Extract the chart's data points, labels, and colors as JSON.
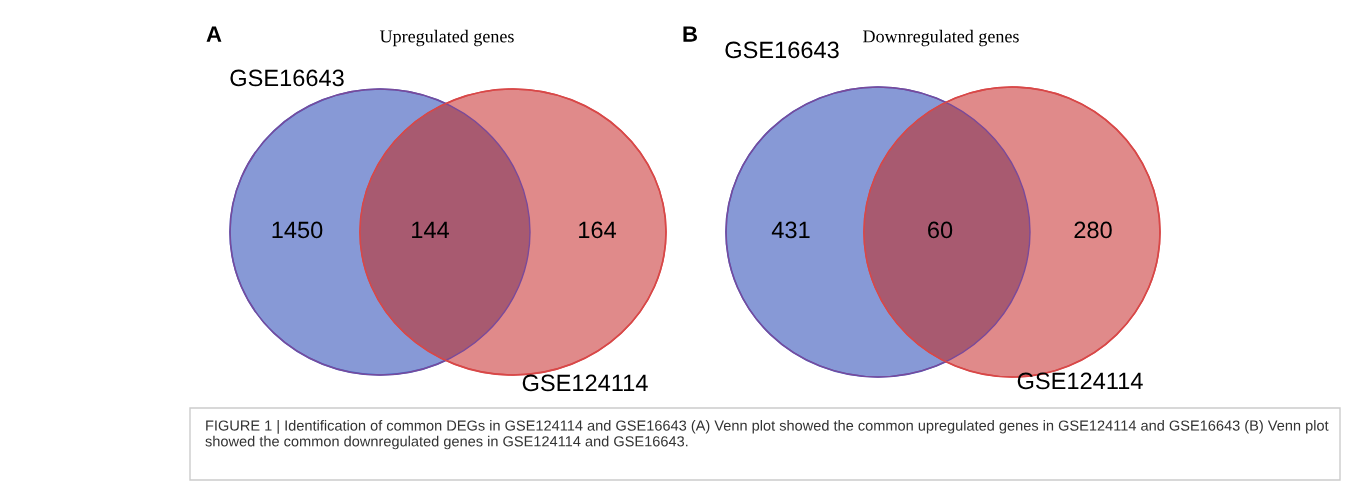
{
  "chart_data": [
    {
      "type": "other",
      "title": "Upregulated genes",
      "categories": [
        "GSE16643",
        null,
        "GSE124114"
      ],
      "values": [
        1450,
        144,
        164
      ],
      "colors": [
        "#8799d6",
        "#a85a70",
        "#e08a8a"
      ],
      "data_labels": true,
      "annotations": [
        "A"
      ]
    },
    {
      "type": "other",
      "title": "Downregulated genes",
      "categories": [
        "GSE16643",
        null,
        "GSE124114"
      ],
      "values": [
        431,
        60,
        280
      ],
      "colors": [
        "#8799d6",
        "#a85a70",
        "#e08a8a"
      ],
      "data_labels": true,
      "annotations": [
        "B",
        "FIGURE 1 | Identification of common DEGs in GSE124114 and GSE16643 (A) Venn plot showed the common upregulated genes in GSE124114 and GSE16643 (B) Venn plot showed the common downregulated genes in GSE124114 and GSE16643."
      ]
    }
  ]
}
